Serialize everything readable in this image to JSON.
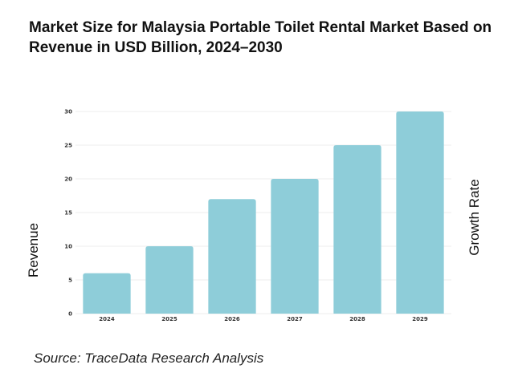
{
  "title": "Market Size for Malaysia Portable Toilet Rental Market Based on Revenue in USD Billion, 2024–2030",
  "source": "Source: TraceData Research Analysis",
  "colors": {
    "bar": "#8ecdd9",
    "grid": "#eeeeee"
  },
  "chart_data": {
    "type": "bar",
    "title": "Market Size for Malaysia Portable Toilet Rental Market Based on Revenue in USD Billion, 2024–2030",
    "xlabel": "",
    "ylabel": "Revenue",
    "y2label": "Growth Rate",
    "categories": [
      "2024",
      "2025",
      "2026",
      "2027",
      "2028",
      "2029"
    ],
    "values": [
      6,
      10,
      17,
      20,
      25,
      30
    ],
    "ylim": [
      0,
      30
    ],
    "yticks": [
      0,
      5,
      10,
      15,
      20,
      25,
      30
    ],
    "grid": true,
    "legend": "none"
  }
}
